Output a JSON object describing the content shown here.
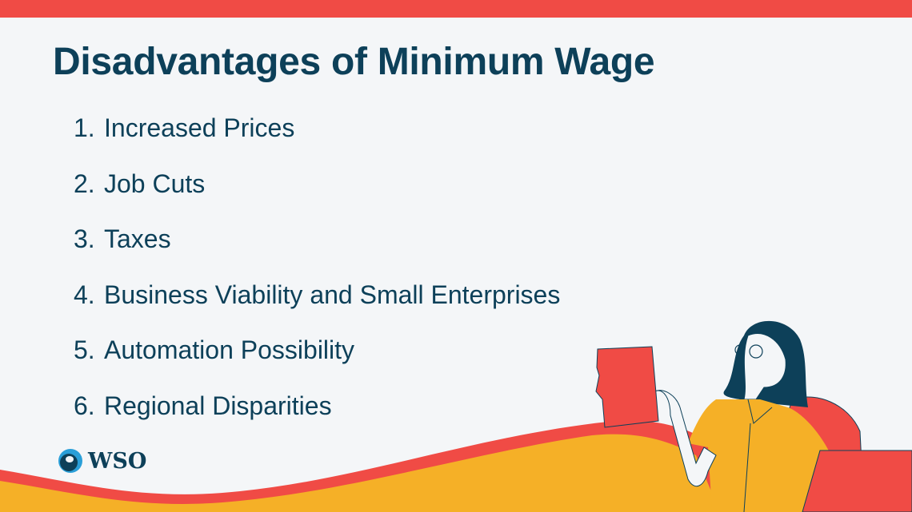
{
  "title": "Disadvantages of Minimum Wage",
  "items": [
    {
      "number": "1.",
      "label": "Increased Prices"
    },
    {
      "number": "2.",
      "label": "Job Cuts"
    },
    {
      "number": "3.",
      "label": "Taxes"
    },
    {
      "number": "4.",
      "label": "Business Viability and Small Enterprises"
    },
    {
      "number": "5.",
      "label": "Automation Possibility"
    },
    {
      "number": "6.",
      "label": "Regional Disparities"
    }
  ],
  "logo": {
    "text": "WSO"
  },
  "colors": {
    "accent_red": "#F04B45",
    "accent_yellow": "#F5B027",
    "navy": "#0D4059",
    "background": "#F4F6F8"
  }
}
